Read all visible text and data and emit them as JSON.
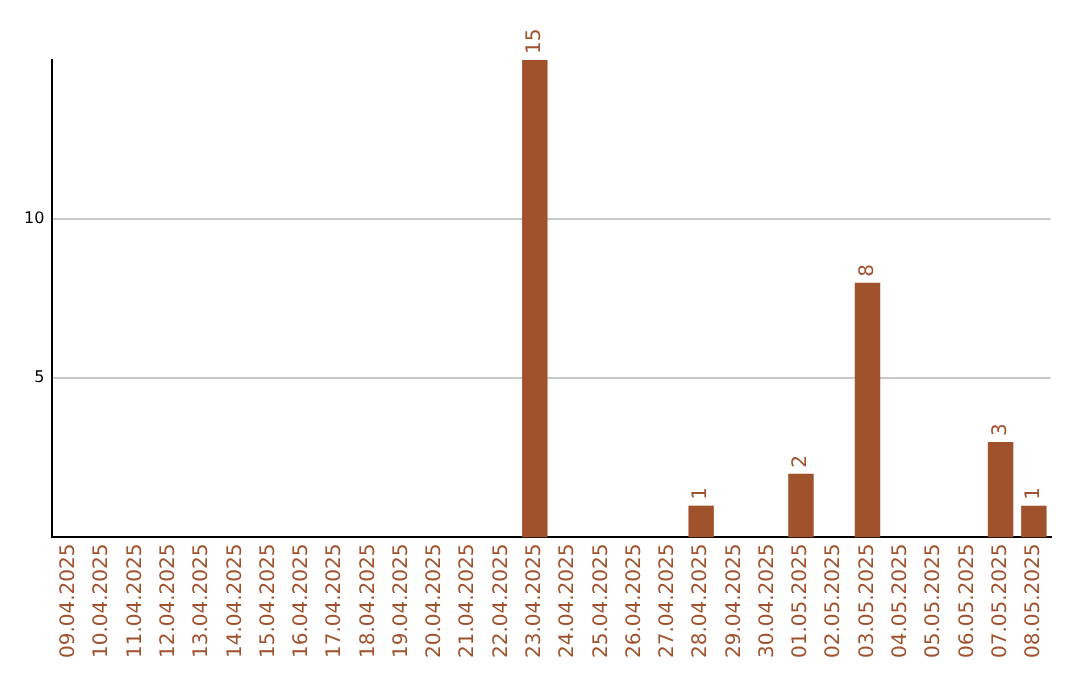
{
  "chart_data": {
    "type": "bar",
    "categories": [
      "09.04.2025",
      "10.04.2025",
      "11.04.2025",
      "12.04.2025",
      "13.04.2025",
      "14.04.2025",
      "15.04.2025",
      "16.04.2025",
      "17.04.2025",
      "18.04.2025",
      "19.04.2025",
      "20.04.2025",
      "21.04.2025",
      "22.04.2025",
      "23.04.2025",
      "24.04.2025",
      "25.04.2025",
      "26.04.2025",
      "27.04.2025",
      "28.04.2025",
      "29.04.2025",
      "30.04.2025",
      "01.05.2025",
      "02.05.2025",
      "03.05.2025",
      "04.05.2025",
      "05.05.2025",
      "06.05.2025",
      "07.05.2025",
      "08.05.2025"
    ],
    "values": [
      0,
      0,
      0,
      0,
      0,
      0,
      0,
      0,
      0,
      0,
      0,
      0,
      0,
      0,
      15,
      0,
      0,
      0,
      0,
      1,
      0,
      0,
      2,
      0,
      8,
      0,
      0,
      0,
      3,
      1
    ],
    "value_labels": [
      null,
      null,
      null,
      null,
      null,
      null,
      null,
      null,
      null,
      null,
      null,
      null,
      null,
      null,
      "15",
      null,
      null,
      null,
      null,
      "1",
      null,
      null,
      "2",
      null,
      "8",
      null,
      null,
      null,
      "3",
      "1"
    ],
    "color": "#a0522d",
    "ylim": [
      0,
      15
    ],
    "yticks": [
      5,
      10
    ],
    "grid": "y"
  }
}
